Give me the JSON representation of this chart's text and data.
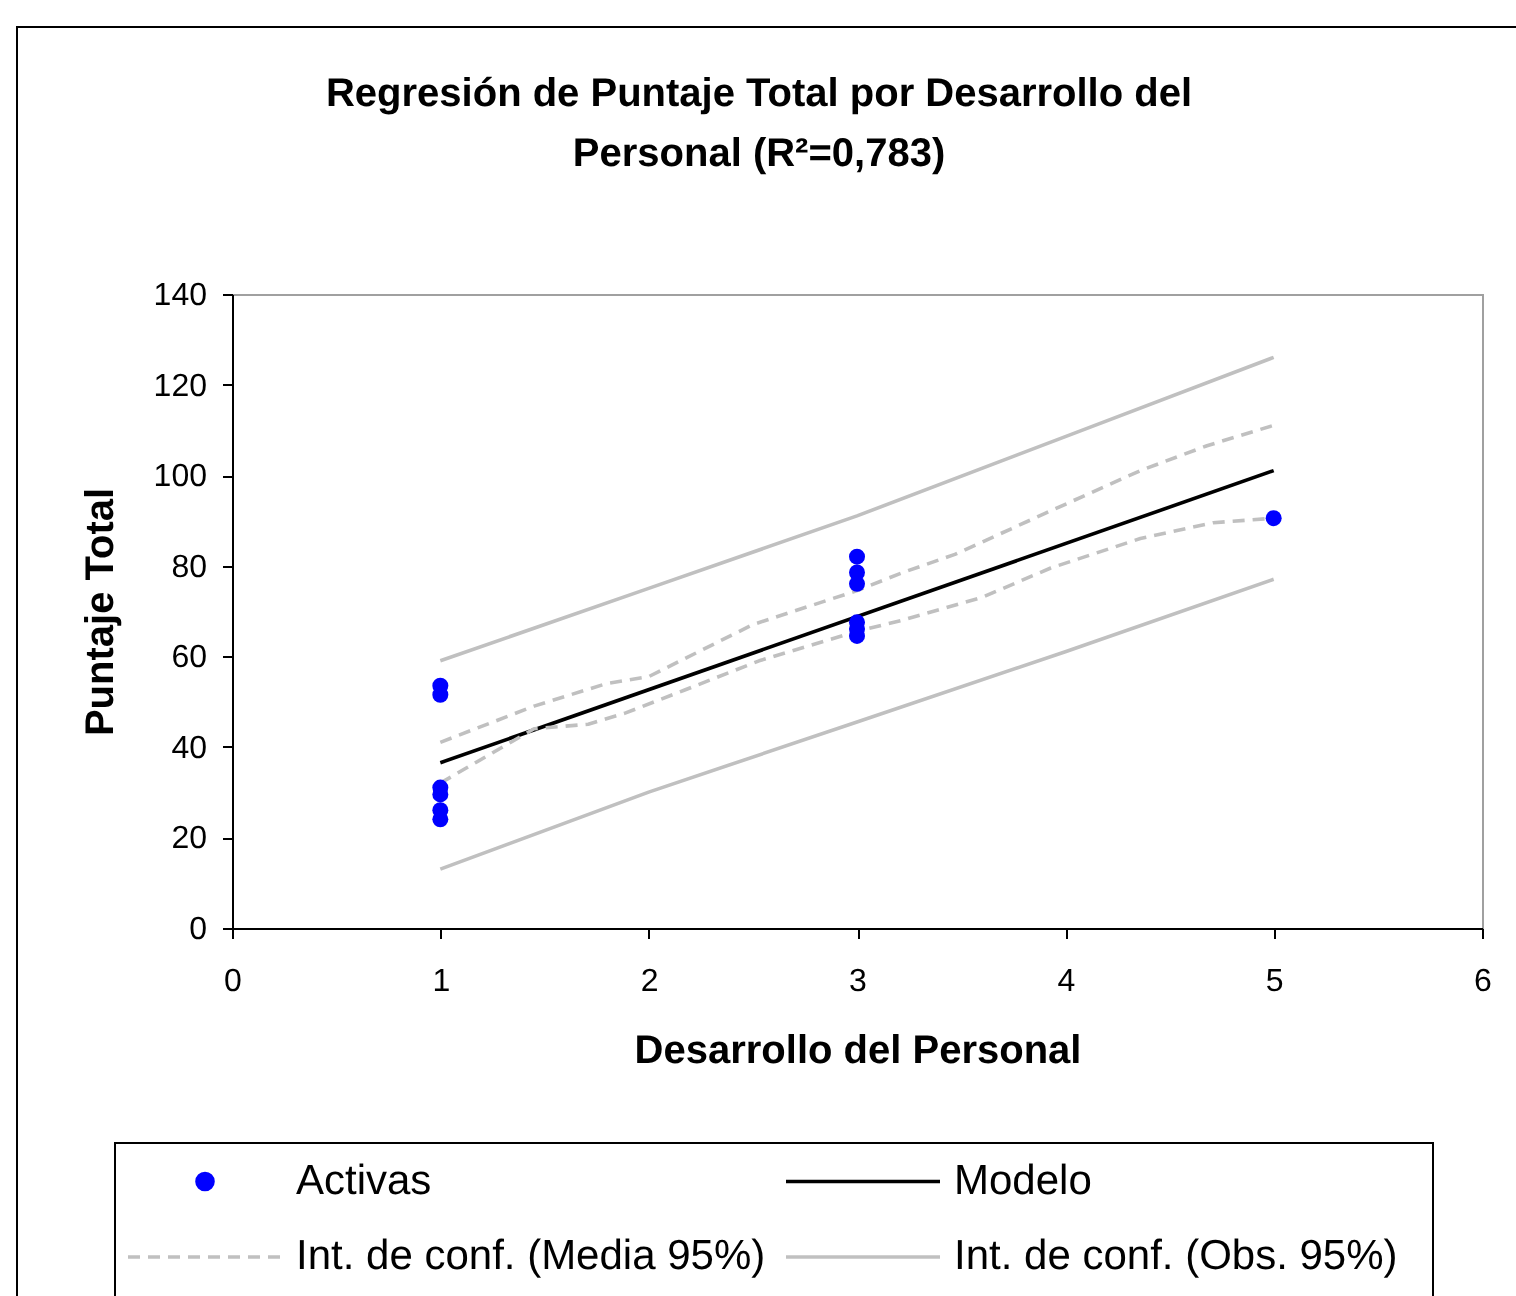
{
  "chart_data": {
    "type": "scatter",
    "title": "Regresión de Puntaje Total por Desarrollo del Personal (R²=0,783)",
    "xlabel": "Desarrollo del Personal",
    "ylabel": "Puntaje Total",
    "xlim": [
      0,
      6
    ],
    "xticks": [
      0,
      1,
      2,
      3,
      4,
      5,
      6
    ],
    "ylim": [
      0,
      140
    ],
    "yticks": [
      0,
      20,
      40,
      60,
      80,
      100,
      120,
      140
    ],
    "grid": false,
    "legend": "bottom",
    "series": [
      {
        "name": "Activas",
        "color": "#0000ff",
        "marker": "circle",
        "x": [
          1,
          1,
          1,
          1,
          1,
          1,
          3,
          3,
          3,
          3,
          3,
          3,
          5
        ],
        "values": [
          53.5,
          51.5,
          31,
          29.5,
          26,
          24,
          82,
          78.5,
          76,
          67.5,
          66,
          64.5,
          90.5
        ]
      },
      {
        "name": "Modelo",
        "type": "line",
        "color": "#000000",
        "line_style": "solid",
        "x": [
          1,
          5
        ],
        "values": [
          36.5,
          101
        ]
      },
      {
        "name": "Int. de conf. (Media 95%)",
        "type": "line",
        "color": "#c0c0c0",
        "line_style": "dashed",
        "x": [
          1,
          1.45,
          1.8,
          2,
          2.5,
          3,
          3.22,
          3.47,
          3.9,
          4.36,
          4.68,
          5
        ],
        "values": [
          41,
          49,
          54,
          55.5,
          67,
          74.5,
          78.5,
          82.5,
          91.5,
          101,
          106.5,
          111
        ]
      },
      {
        "type": "line",
        "color": "#c0c0c0",
        "line_style": "dashed",
        "x": [
          1,
          1.45,
          1.71,
          1.89,
          2.17,
          2.53,
          3,
          3.22,
          3.6,
          3.93,
          4.36,
          4.71,
          5
        ],
        "values": [
          32,
          44,
          45,
          47.5,
          52.5,
          59,
          65.5,
          68,
          73,
          79.5,
          86,
          89.5,
          90.5
        ]
      },
      {
        "name": "Int. de conf. (Obs. 95%)",
        "type": "line",
        "color": "#c0c0c0",
        "line_style": "solid",
        "x": [
          1,
          2,
          3,
          4,
          5
        ],
        "values": [
          59,
          75,
          91,
          108.5,
          126
        ]
      },
      {
        "type": "line",
        "color": "#c0c0c0",
        "line_style": "solid",
        "x": [
          1,
          2,
          3,
          4,
          5
        ],
        "values": [
          13,
          30,
          45.5,
          61,
          77
        ]
      }
    ]
  }
}
